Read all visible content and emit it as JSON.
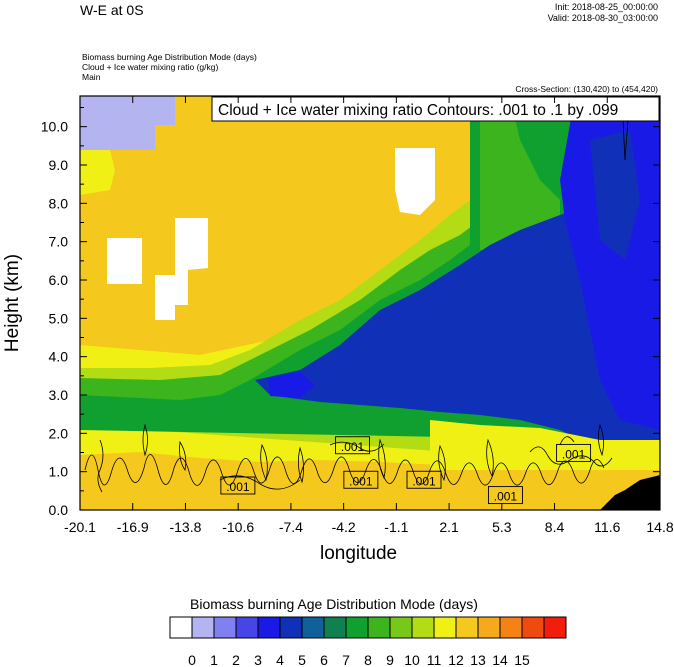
{
  "header": {
    "title": "W-E at 0S",
    "init": "Init: 2018-08-25_00:00:00",
    "valid": "Valid: 2018-08-30_03:00:00",
    "desc1": "Biomass burning Age Distribution Mode   (days)",
    "desc2": "Cloud + Ice water mixing ratio   (g/kg)",
    "desc3": "Main",
    "cross_section": "Cross-Section: (130,420) to (454,420)"
  },
  "legend_box": "Cloud + Ice water mixing ratio Contours: .001 to .1 by .099",
  "chart_data": {
    "type": "heatmap",
    "title": "W-E at 0S",
    "xlabel": "longitude",
    "ylabel": "Height (km)",
    "x_ticks": [
      "-20.1",
      "-16.9",
      "-13.8",
      "-10.6",
      "-7.4",
      "-4.2",
      "-1.1",
      "2.1",
      "5.3",
      "8.4",
      "11.6",
      "14.8"
    ],
    "y_ticks": [
      "0.0",
      "1.0",
      "2.0",
      "3.0",
      "4.0",
      "5.0",
      "6.0",
      "7.0",
      "8.0",
      "9.0",
      "10.0"
    ],
    "xlim": [
      -20.1,
      14.8
    ],
    "ylim": [
      0,
      10.8
    ],
    "colorbar": {
      "title": "Biomass burning Age Distribution Mode  (days)",
      "labels": [
        "0",
        "1",
        "2",
        "3",
        "4",
        "5",
        "6",
        "7",
        "8",
        "9",
        "10",
        "11",
        "12",
        "13",
        "14",
        "15"
      ],
      "colors": [
        "#ffffff",
        "#b4b4f0",
        "#8080f0",
        "#4646e6",
        "#1a1ae6",
        "#1030b8",
        "#10609a",
        "#108050",
        "#10a030",
        "#3cb41e",
        "#78c81a",
        "#b4dc14",
        "#f0f014",
        "#f5c81e",
        "#f5aa1e",
        "#f58214",
        "#f04b0f",
        "#f01e0a"
      ]
    },
    "regions": [
      {
        "name": "lower-yellow-band",
        "level": 12
      },
      {
        "name": "mid-green",
        "level": 9
      },
      {
        "name": "upper-orange",
        "level": 13
      },
      {
        "name": "east-green",
        "level": 8
      },
      {
        "name": "central-blue",
        "level": 4
      },
      {
        "name": "east-deep-blue",
        "level": 3
      },
      {
        "name": "top-lavender",
        "level": 1
      },
      {
        "name": "cloud-free-white",
        "level": 0
      }
    ],
    "contour_labels": [
      {
        "text": ".001",
        "x": -10.6,
        "y": 0.6
      },
      {
        "text": ".001",
        "x": -3.7,
        "y": 1.65
      },
      {
        "text": ".001",
        "x": -3.2,
        "y": 0.75
      },
      {
        "text": ".001",
        "x": 0.6,
        "y": 0.75
      },
      {
        "text": ".001",
        "x": 5.5,
        "y": 0.35
      },
      {
        "text": ".001",
        "x": 9.6,
        "y": 1.45
      }
    ],
    "contour_levels": [
      0.001,
      0.1
    ]
  }
}
